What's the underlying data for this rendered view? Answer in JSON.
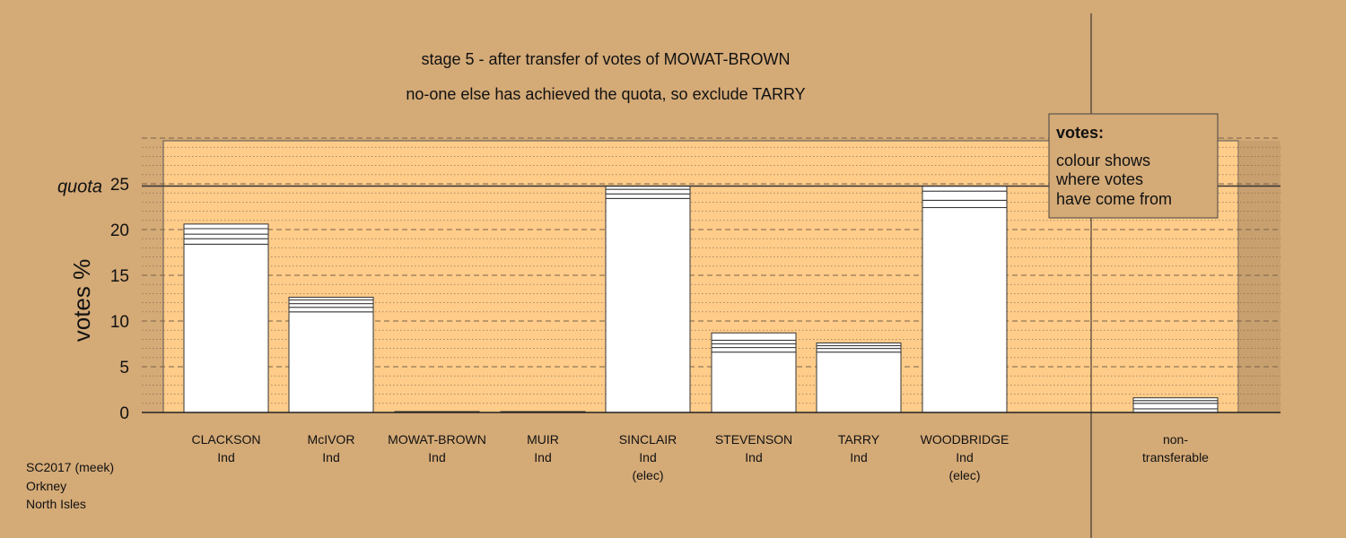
{
  "chart_data": {
    "type": "bar",
    "stacked": true,
    "title": "stage 5 - after transfer of votes of MOWAT-BROWN",
    "subtitle": "no-one else has achieved the quota, so exclude TARRY",
    "ylabel": "votes %",
    "ylim": [
      0,
      30
    ],
    "yticks": [
      0,
      5,
      10,
      15,
      20,
      25
    ],
    "grid": "dashed major, dotted minor",
    "quota": {
      "label": "quota",
      "value": 24.75
    },
    "categories": [
      {
        "name": "CLACKSON",
        "party": "Ind",
        "note": "",
        "segments": [
          18.4,
          0.6,
          0.5,
          0.6,
          0.5
        ]
      },
      {
        "name": "McIVOR",
        "party": "Ind",
        "note": "",
        "segments": [
          11.0,
          0.5,
          0.4,
          0.4,
          0.3
        ]
      },
      {
        "name": "MOWAT-BROWN",
        "party": "Ind",
        "note": "",
        "segments": [
          0.1
        ]
      },
      {
        "name": "MUIR",
        "party": "Ind",
        "note": "",
        "segments": [
          0.1
        ]
      },
      {
        "name": "SINCLAIR",
        "party": "Ind",
        "note": "(elec)",
        "segments": [
          23.4,
          0.5,
          0.5,
          0.35
        ]
      },
      {
        "name": "STEVENSON",
        "party": "Ind",
        "note": "",
        "segments": [
          6.6,
          0.5,
          0.4,
          0.4,
          0.8
        ]
      },
      {
        "name": "TARRY",
        "party": "Ind",
        "note": "",
        "segments": [
          6.6,
          0.4,
          0.3,
          0.3
        ]
      },
      {
        "name": "WOODBRIDGE",
        "party": "Ind",
        "note": "(elec)",
        "segments": [
          22.4,
          0.8,
          1.0,
          0.55
        ]
      }
    ],
    "non_transferable": {
      "name": "non-",
      "name2": "transferable",
      "segments": [
        0.4,
        0.6,
        0.3,
        0.3
      ]
    }
  },
  "legend": {
    "heading": "votes:",
    "lines": [
      "colour shows",
      "where votes",
      "have come from"
    ]
  },
  "footer": {
    "lines": [
      "SC2017 (meek)",
      "Orkney",
      "North Isles"
    ]
  },
  "colors": {
    "background": "#d4aa77",
    "plot_fill": "#ffcc8a",
    "bar_fill": "#ffffff",
    "ink": "#333333"
  }
}
